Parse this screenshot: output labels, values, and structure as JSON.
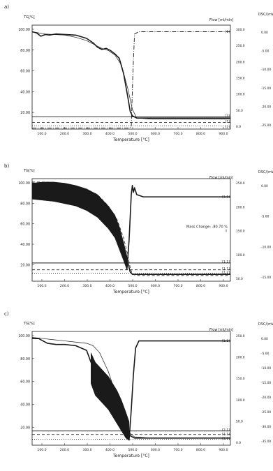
{
  "figure": {
    "background": "#ffffff",
    "ink": "#1a1a1a"
  },
  "chart_data": [
    {
      "type": "line",
      "panel_label": "a)",
      "y_axis_title": "TG[%]",
      "x_axis_title": "Temperature [°C]",
      "flow_axis_title": "Flow [ml/min]",
      "dsc_axis_title": "DSC/(mW/mg)",
      "y_ticks": [
        "100.00",
        "80.00",
        "60.00",
        "40.00",
        "20.00"
      ],
      "flow_ticks": [
        "300.0",
        "250.0",
        "200.0",
        "150.0",
        "100.0",
        "50.0",
        "0.0"
      ],
      "dsc_ticks": [
        "0.00",
        "-5.00",
        "-10.00",
        "-15.00",
        "-20.00",
        "-25.00"
      ],
      "x_ticks": [
        "100.0",
        "200.0",
        "300.0",
        "400.0",
        "500.0",
        "600.0",
        "700.0",
        "800.0",
        "900.0"
      ],
      "xlim": [
        50,
        960
      ],
      "ylim": [
        12,
        106
      ],
      "series": [
        {
          "style": "tg-solid",
          "x": [
            50,
            70,
            90,
            110,
            130,
            160,
            200,
            250,
            300,
            330,
            350,
            370,
            390,
            410,
            430,
            450,
            470,
            490,
            500,
            510,
            530,
            560,
            600,
            700,
            800,
            900,
            960
          ],
          "y": [
            100,
            99,
            96,
            97.5,
            97,
            98,
            97.5,
            97,
            94,
            90,
            86,
            84,
            85,
            83,
            80,
            76,
            62,
            40,
            28,
            24,
            22,
            22,
            22,
            22,
            22,
            22,
            22
          ]
        },
        {
          "style": "tg-thin",
          "x": [
            50,
            80,
            110,
            150,
            200,
            250,
            300,
            340,
            370,
            400,
            430,
            460,
            490,
            510,
            530,
            600,
            960
          ],
          "y": [
            100,
            99,
            98,
            97.5,
            97,
            95,
            92,
            88,
            85,
            83,
            79,
            70,
            48,
            30,
            22,
            21,
            21
          ]
        },
        {
          "style": "flow-dashdot",
          "x": [
            50,
            200,
            400,
            490,
            505,
            512,
            520,
            540,
            600,
            700,
            800,
            960
          ],
          "y": [
            13,
            13,
            13,
            13,
            14,
            60,
            98,
            100,
            100,
            100,
            100,
            100
          ]
        },
        {
          "style": "level-solid",
          "x": [
            50,
            960
          ],
          "y": [
            23,
            23
          ]
        },
        {
          "style": "level-dashed",
          "x": [
            50,
            960
          ],
          "y": [
            18,
            18
          ]
        },
        {
          "style": "level-dotted",
          "x": [
            50,
            960
          ],
          "y": [
            15,
            15
          ]
        }
      ],
      "annotations": [
        {
          "text": "[1]",
          "x": 960,
          "y": 100
        },
        {
          "text": "[3]",
          "x": 960,
          "y": 24
        },
        {
          "text": "[1]",
          "x": 960,
          "y": 19
        },
        {
          "text": "[2]",
          "x": 960,
          "y": 14
        }
      ]
    },
    {
      "type": "line",
      "panel_label": "b)",
      "y_axis_title": "TG[%]",
      "x_axis_title": "Temperature [°C]",
      "flow_axis_title": "Flow [ml/min]",
      "dsc_axis_title": "DSC/(mW/mg)",
      "y_ticks": [
        "100.00",
        "80.00",
        "60.00",
        "40.00",
        "20.00"
      ],
      "flow_ticks": [
        "250.0",
        "200.0",
        "150.0",
        "100.0",
        "50.0"
      ],
      "dsc_ticks": [
        "0.00",
        "-5.00",
        "-10.00",
        "-15.00"
      ],
      "x_ticks": [
        "100.0",
        "200.0",
        "300.0",
        "400.0",
        "500.0",
        "600.0",
        "700.0",
        "800.0",
        "900.0"
      ],
      "xlim": [
        50,
        960
      ],
      "ylim": [
        14,
        104
      ],
      "mass_change_label": "Mass Change: -80.70 %",
      "series": [
        {
          "style": "tg-solid",
          "x": [
            50,
            100,
            150,
            200,
            250,
            300,
            350,
            400,
            430,
            450,
            470,
            480,
            490,
            500,
            510,
            520,
            540,
            600,
            960
          ],
          "y": [
            100,
            99,
            98,
            96,
            93,
            89,
            84,
            76,
            68,
            58,
            46,
            38,
            30,
            22,
            20,
            20,
            20,
            20,
            20
          ]
        },
        {
          "style": "tg-dashed",
          "x": [
            50,
            120,
            200,
            280,
            350,
            400,
            440,
            470,
            490,
            500,
            510,
            530,
            600,
            960
          ],
          "y": [
            101,
            101,
            99,
            96,
            90,
            80,
            68,
            52,
            36,
            26,
            20,
            19,
            19,
            19
          ]
        },
        {
          "style": "noise-band",
          "x": [
            50,
            100,
            150,
            200,
            250,
            300,
            350,
            400,
            430,
            450,
            470,
            485
          ],
          "upper": [
            100,
            101,
            101,
            100,
            98,
            95,
            90,
            80,
            72,
            62,
            48,
            36
          ],
          "lower": [
            86,
            85,
            84,
            82,
            80,
            76,
            70,
            60,
            52,
            42,
            32,
            24
          ]
        },
        {
          "style": "spike-solid",
          "x": [
            485,
            495,
            500,
            505,
            510,
            515,
            520,
            530,
            560,
            600,
            700,
            960
          ],
          "y": [
            24,
            50,
            70,
            90,
            98,
            92,
            96,
            90,
            88,
            88,
            88,
            88
          ]
        },
        {
          "style": "level-solid",
          "x": [
            50,
            960
          ],
          "y": [
            30,
            30
          ]
        },
        {
          "style": "level-dashed",
          "x": [
            50,
            960
          ],
          "y": [
            24,
            24
          ]
        },
        {
          "style": "level-dotted",
          "x": [
            50,
            960
          ],
          "y": [
            21,
            21
          ]
        }
      ],
      "annotations": [
        {
          "text": "[1.1]",
          "x": 960,
          "y": 88
        },
        {
          "text": "[1.1]",
          "x": 960,
          "y": 31
        },
        {
          "text": "[1.1]",
          "x": 960,
          "y": 25
        },
        {
          "text": "[1.2]",
          "x": 960,
          "y": 22
        }
      ]
    },
    {
      "type": "line",
      "panel_label": "c)",
      "y_axis_title": "TG[%]",
      "x_axis_title": "Temperature [°C]",
      "flow_axis_title": "Flow [ml/min]",
      "dsc_axis_title": "DSC/(mW/mg)",
      "y_ticks": [
        "100.00",
        "80.00",
        "60.00",
        "40.00",
        "20.00"
      ],
      "flow_ticks": [
        "250.0",
        "200.0",
        "150.0",
        "100.0",
        "50.0",
        "0.0"
      ],
      "dsc_ticks": [
        "0.00",
        "-5.00",
        "-10.00",
        "-15.00",
        "-20.00",
        "-25.00",
        "-30.00",
        "-35.00"
      ],
      "x_ticks": [
        "100.0",
        "200.0",
        "300.0",
        "400.0",
        "500.0",
        "600.0",
        "700.0",
        "800.0",
        "900.0"
      ],
      "xlim": [
        50,
        960
      ],
      "ylim": [
        10,
        106
      ],
      "series": [
        {
          "style": "tg-solid",
          "x": [
            50,
            80,
            120,
            160,
            200,
            250,
            300,
            320,
            340,
            360,
            380,
            400,
            420,
            440,
            460,
            480,
            500,
            520,
            560,
            600,
            960
          ],
          "y": [
            100,
            100,
            96,
            95,
            95,
            94,
            90,
            80,
            70,
            64,
            60,
            56,
            50,
            44,
            36,
            26,
            18,
            16,
            16,
            16,
            16
          ]
        },
        {
          "style": "tg-thin",
          "x": [
            50,
            100,
            150,
            200,
            250,
            300,
            330,
            360,
            400,
            440,
            480,
            500,
            520,
            600,
            960
          ],
          "y": [
            101,
            100,
            99,
            98,
            97,
            96,
            94,
            88,
            72,
            50,
            28,
            20,
            17,
            16,
            16
          ]
        },
        {
          "style": "noise-band",
          "x": [
            320,
            340,
            360,
            380,
            400,
            420,
            440,
            460,
            480,
            495
          ],
          "upper": [
            88,
            80,
            76,
            72,
            68,
            62,
            56,
            48,
            38,
            30
          ],
          "lower": [
            62,
            52,
            48,
            44,
            40,
            34,
            28,
            22,
            16,
            14
          ]
        },
        {
          "style": "spike-solid",
          "x": [
            495,
            505,
            515,
            525,
            540,
            560,
            600,
            700,
            960
          ],
          "y": [
            14,
            40,
            70,
            92,
            98,
            98,
            98,
            98,
            98
          ]
        },
        {
          "style": "level-solid",
          "x": [
            50,
            960
          ],
          "y": [
            22,
            22
          ]
        },
        {
          "style": "level-dashed",
          "x": [
            50,
            960
          ],
          "y": [
            19,
            19
          ]
        },
        {
          "style": "level-dotted",
          "x": [
            50,
            960
          ],
          "y": [
            15,
            15
          ]
        }
      ],
      "annotations": [
        {
          "text": "[1.1]",
          "x": 960,
          "y": 98
        },
        {
          "text": "[2.1]",
          "x": 960,
          "y": 23
        },
        {
          "text": "[1.1]",
          "x": 960,
          "y": 19.5
        },
        {
          "text": "[1.1]",
          "x": 960,
          "y": 15.5
        }
      ]
    }
  ]
}
